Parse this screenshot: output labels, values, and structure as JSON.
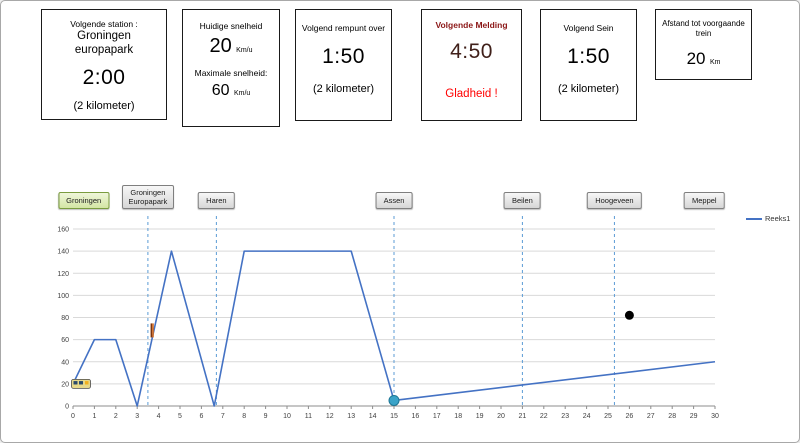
{
  "panels": {
    "next_station": {
      "title": "Volgende station :",
      "station_line1": "Groningen",
      "station_line2": "europapark",
      "time": "2:00",
      "distance": "(2 kilometer)"
    },
    "speed": {
      "title": "Huidige snelheid",
      "current_value": "20",
      "current_unit": "Km/u",
      "max_label": "Maximale snelheid:",
      "max_value": "60",
      "max_unit": "Km/u"
    },
    "brake": {
      "title": "Volgend rempunt over",
      "time": "1:50",
      "distance": "(2 kilometer)"
    },
    "message": {
      "title": "Volgende Melding",
      "time": "4:50",
      "warning": "Gladheid !",
      "title_color": "#8b1616",
      "time_color": "#40201a",
      "warning_color": "#ff0000"
    },
    "signal": {
      "title": "Volgend Sein",
      "time": "1:50",
      "distance": "(2 kilometer)"
    },
    "preceding_train": {
      "title_line1": "Afstand tot voorgaande",
      "title_line2": "trein",
      "value": "20",
      "unit": "Km"
    }
  },
  "chart_data": {
    "type": "line",
    "legend": "Reeks1",
    "xlim": [
      0,
      30
    ],
    "ylim": [
      0,
      160
    ],
    "x_tick_step": 1,
    "y_tick_step": 20,
    "grid": true,
    "legend_position": "right",
    "line_color": "#4472c4",
    "station_line_color": "#5b9bd5",
    "series": [
      {
        "name": "Reeks1",
        "points": [
          [
            0,
            20
          ],
          [
            1,
            60
          ],
          [
            2,
            60
          ],
          [
            3,
            0
          ],
          [
            4.6,
            140
          ],
          [
            6.6,
            0
          ],
          [
            8,
            140
          ],
          [
            13,
            140
          ],
          [
            15,
            5
          ],
          [
            30,
            40
          ]
        ]
      }
    ],
    "stations": [
      {
        "name": "Groningen",
        "x": 0.5,
        "current": true,
        "line": false,
        "wrap": false
      },
      {
        "name": "Groningen Europapark",
        "x": 3.5,
        "current": false,
        "line": true,
        "wrap": true
      },
      {
        "name": "Haren",
        "x": 6.7,
        "current": false,
        "line": true,
        "wrap": false
      },
      {
        "name": "Assen",
        "x": 15,
        "current": false,
        "line": true,
        "wrap": false
      },
      {
        "name": "Beilen",
        "x": 21,
        "current": false,
        "line": true,
        "wrap": false
      },
      {
        "name": "Hoogeveen",
        "x": 25.3,
        "current": false,
        "line": true,
        "wrap": false
      },
      {
        "name": "Meppel",
        "x": 29.5,
        "current": false,
        "line": false,
        "wrap": false
      }
    ],
    "markers": [
      {
        "name": "stop-point-marker",
        "x": 15,
        "y": 5,
        "r": 5,
        "color": "#3aa3c8",
        "stroke": "#1e7795"
      },
      {
        "name": "train-ahead-marker",
        "x": 26,
        "y": 82,
        "r": 4,
        "color": "#000000",
        "stroke": "#000000"
      }
    ],
    "icons": [
      {
        "name": "train-icon",
        "x": 0.35,
        "y": 20
      },
      {
        "name": "gladheid-marker",
        "x": 3.7,
        "y": 62
      }
    ]
  }
}
